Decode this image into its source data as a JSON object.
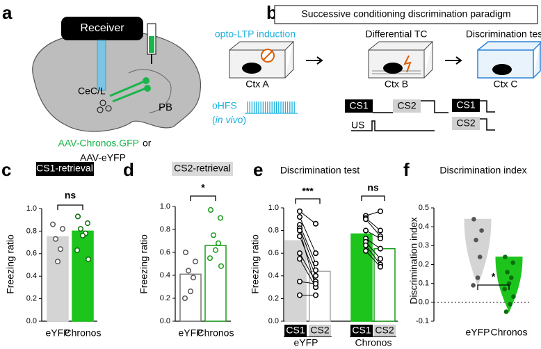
{
  "panel_a": {
    "letter": "a",
    "receiver": "Receiver",
    "region1": "CeC/L",
    "region2": "PB",
    "virus1": "AAV-Chronos.GFP",
    "or": "or",
    "virus2": "AAV-eYFP"
  },
  "panel_b": {
    "letter": "b",
    "title": "Successive conditioning discrimination paradigm",
    "stage1": "opto-LTP induction",
    "stage2": "Differential TC",
    "stage3": "Discrimination test",
    "ctx1": "Ctx A",
    "ctx2": "Ctx B",
    "ctx3": "Ctx C",
    "stim": "oHFS",
    "stim_paren_open": "(",
    "stim_note": "in vivo",
    "stim_paren_close": ")",
    "cs1": "CS1",
    "cs2": "CS2",
    "us": "US",
    "test_cs1": "CS1",
    "test_cs2": "CS2"
  },
  "chart_data": [
    {
      "type": "bar",
      "letter": "c",
      "title": "CS1-retrieval",
      "ylabel": "Freezing ratio",
      "categories": [
        "eYFP",
        "Chronos"
      ],
      "values": [
        0.75,
        0.8
      ],
      "fills": [
        "#d4d4d4",
        "#1cc41c"
      ],
      "edges": [
        "#d4d4d4",
        "#1cc41c"
      ],
      "point_colors": [
        "#555555",
        "#0a6e0a"
      ],
      "points": [
        [
          0.86,
          0.82,
          0.73,
          0.64,
          0.53
        ],
        [
          0.93,
          0.87,
          0.82,
          0.78,
          0.76,
          0.63,
          0.55
        ]
      ],
      "annotations": [
        "ns"
      ],
      "ylim": [
        0,
        1
      ],
      "yticks": [
        {
          "value": 0,
          "label": "0.0"
        },
        0.2,
        0.4,
        0.6,
        0.8,
        {
          "value": 1,
          "label": "1.0"
        }
      ]
    },
    {
      "type": "bar",
      "letter": "d",
      "title": "CS2-retrieval",
      "ylabel": "Freezing ratio",
      "categories": [
        "eYFP",
        "Chronos"
      ],
      "values": [
        0.41,
        0.66
      ],
      "fills": [
        "#ffffff",
        "#ffffff"
      ],
      "edges": [
        "#777777",
        "#1a9c1a"
      ],
      "point_colors": [
        "#555555",
        "#1a9c1a"
      ],
      "points": [
        [
          0.6,
          0.52,
          0.44,
          0.38,
          0.26,
          0.2
        ],
        [
          0.97,
          0.9,
          0.75,
          0.68,
          0.62,
          0.55,
          0.48
        ]
      ],
      "annotations": [
        "*"
      ],
      "ylim": [
        0,
        1
      ],
      "yticks": [
        {
          "value": 0,
          "label": "0.0"
        },
        0.2,
        0.4,
        0.6,
        0.8,
        {
          "value": 1,
          "label": "1.0"
        }
      ]
    },
    {
      "type": "bar",
      "letter": "e",
      "title": "Discrimination test",
      "ylabel": "Freezing ratio",
      "categories": [
        "CS1",
        "CS2",
        "CS1",
        "CS2"
      ],
      "groups": [
        "eYFP",
        "Chronos"
      ],
      "values": [
        0.71,
        0.44,
        0.77,
        0.64
      ],
      "category_colors": [
        "#000000",
        "#d0d0d0",
        "#000000",
        "#d0d0d0"
      ],
      "fills": [
        "#d4d4d4",
        "#ffffff",
        "#1cc41c",
        "#ffffff"
      ],
      "edges": [
        "#d4d4d4",
        "#aaaaaa",
        "#1cc41c",
        "#1a9c1a"
      ],
      "point_colors": [
        "#000000",
        "#000000",
        "#000000",
        "#000000"
      ],
      "paired": true,
      "points": [
        [
          0.97,
          0.92,
          0.85,
          0.82,
          0.8,
          0.75,
          0.6,
          0.55,
          0.35,
          0.23
        ],
        [
          0.86,
          0.6,
          0.51,
          0.45,
          0.3,
          0.4,
          0.35,
          0.3,
          0.33,
          0.23
        ],
        [
          0.93,
          0.91,
          0.9,
          0.8,
          0.73,
          0.7,
          0.67,
          0.62
        ],
        [
          0.97,
          0.8,
          0.75,
          0.73,
          0.64,
          0.55,
          0.5,
          0.48
        ]
      ],
      "annotations": [
        "***",
        "ns"
      ],
      "ylim": [
        0,
        1
      ],
      "yticks": [
        {
          "value": 0,
          "label": "0.0"
        },
        0.2,
        0.4,
        0.6,
        0.8,
        {
          "value": 1,
          "label": "1.0"
        }
      ]
    },
    {
      "type": "violin",
      "letter": "f",
      "title": "Discrimination index",
      "ylabel": "Discrimination index",
      "categories": [
        "eYFP",
        "Chronos"
      ],
      "fills": [
        "#d4d4d4",
        "#1cc41c"
      ],
      "point_colors": [
        "#555555",
        "#0a6e0a"
      ],
      "points": [
        [
          0.44,
          0.38,
          0.33,
          0.24,
          0.13,
          0.09
        ],
        [
          0.24,
          0.21,
          0.16,
          0.13,
          0.1,
          0.07,
          0.03,
          -0.01,
          -0.05
        ]
      ],
      "reference_line": 0,
      "annotations": [
        "*"
      ],
      "ylim": [
        -0.1,
        0.5
      ],
      "yticks": [
        -0.1,
        {
          "value": 0,
          "label": "0.0"
        },
        0.1,
        0.2,
        0.3,
        0.4,
        0.5
      ]
    }
  ]
}
